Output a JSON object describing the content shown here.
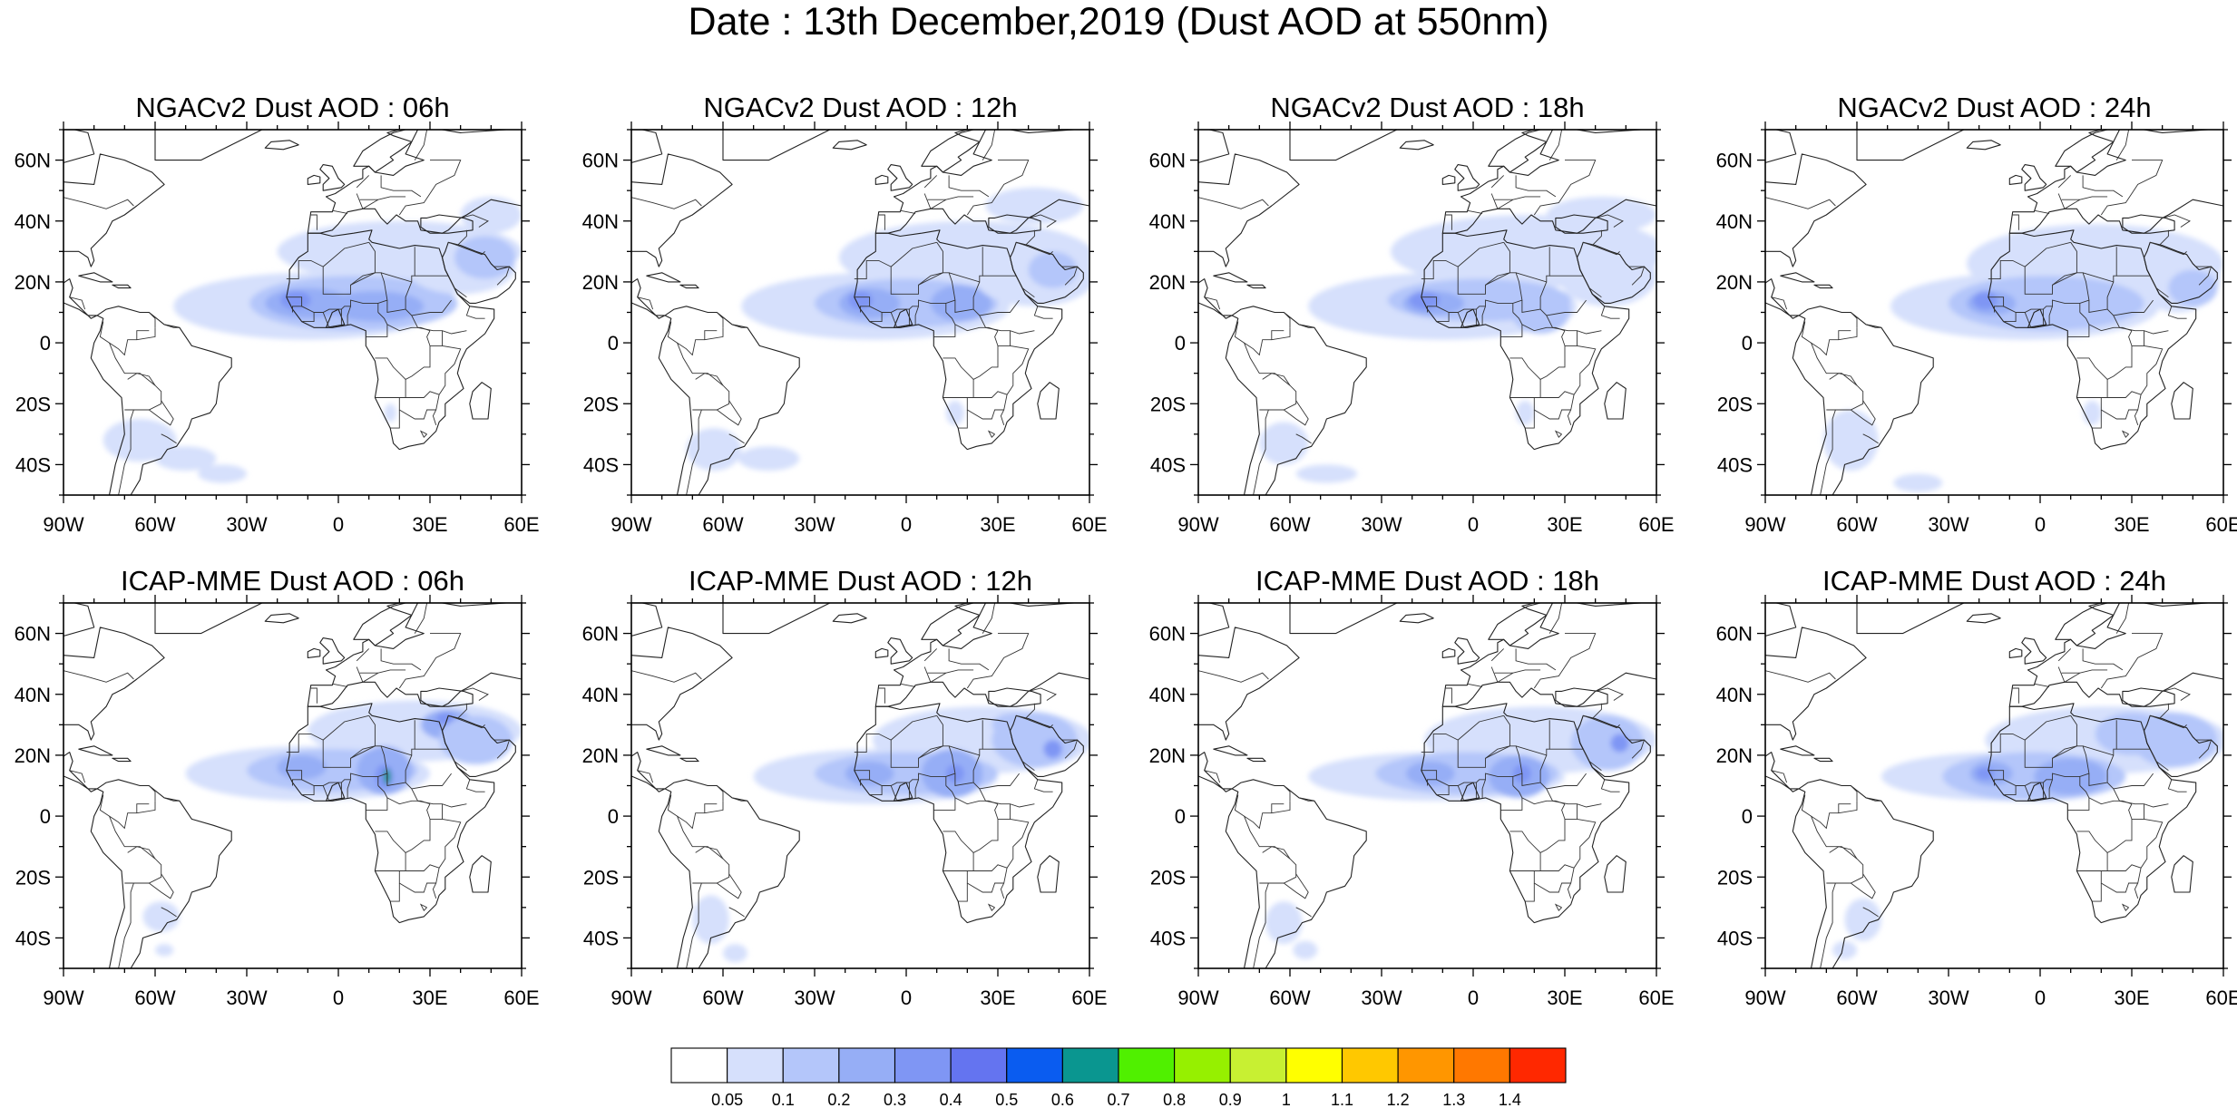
{
  "title": "Date : 13th December,2019 (Dust AOD at 550nm)",
  "panels": [
    {
      "title": "NGACv2 Dust AOD : 06h",
      "model": "NGACv2",
      "hour": "06h"
    },
    {
      "title": "NGACv2 Dust AOD : 12h",
      "model": "NGACv2",
      "hour": "12h"
    },
    {
      "title": "NGACv2 Dust AOD : 18h",
      "model": "NGACv2",
      "hour": "18h"
    },
    {
      "title": "NGACv2 Dust AOD : 24h",
      "model": "NGACv2",
      "hour": "24h"
    },
    {
      "title": "ICAP-MME Dust AOD : 06h",
      "model": "ICAP-MME",
      "hour": "06h"
    },
    {
      "title": "ICAP-MME Dust AOD : 12h",
      "model": "ICAP-MME",
      "hour": "12h"
    },
    {
      "title": "ICAP-MME Dust AOD : 18h",
      "model": "ICAP-MME",
      "hour": "18h"
    },
    {
      "title": "ICAP-MME Dust AOD : 24h",
      "model": "ICAP-MME",
      "hour": "24h"
    }
  ],
  "map_extent": {
    "lon_min": -90,
    "lon_max": 60,
    "lat_min": -50,
    "lat_max": 70
  },
  "lon_ticks": [
    {
      "value": -90,
      "label": "90W"
    },
    {
      "value": -60,
      "label": "60W"
    },
    {
      "value": -30,
      "label": "30W"
    },
    {
      "value": 0,
      "label": "0"
    },
    {
      "value": 30,
      "label": "30E"
    },
    {
      "value": 60,
      "label": "60E"
    }
  ],
  "lat_ticks": [
    {
      "value": 60,
      "label": "60N"
    },
    {
      "value": 40,
      "label": "40N"
    },
    {
      "value": 20,
      "label": "20N"
    },
    {
      "value": 0,
      "label": "0"
    },
    {
      "value": -20,
      "label": "20S"
    },
    {
      "value": -40,
      "label": "40S"
    }
  ],
  "colorbar": {
    "colors": [
      "#ffffff",
      "#d6e0fc",
      "#b4c6fa",
      "#96aef6",
      "#7f96f4",
      "#6474f0",
      "#0a5cf0",
      "#0a9690",
      "#50f000",
      "#96f000",
      "#c8f032",
      "#ffff00",
      "#ffc800",
      "#ff9600",
      "#ff7800",
      "#ff2800"
    ],
    "labels": [
      "0.05",
      "0.1",
      "0.2",
      "0.3",
      "0.4",
      "0.5",
      "0.6",
      "0.7",
      "0.8",
      "0.9",
      "1",
      "1.1",
      "1.2",
      "1.3",
      "1.4"
    ]
  }
}
